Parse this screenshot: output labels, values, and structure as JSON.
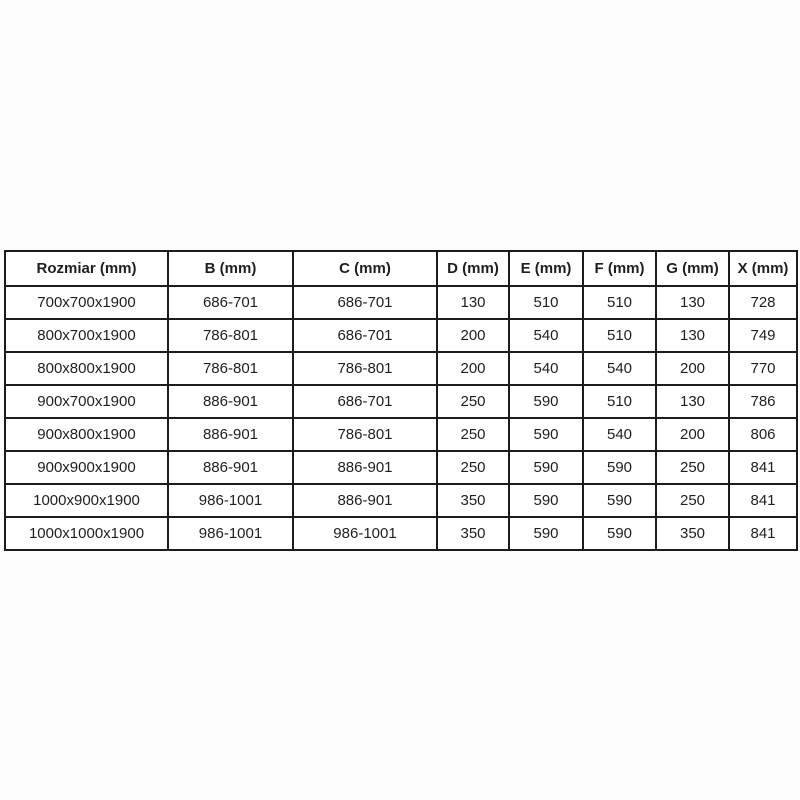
{
  "colors": {
    "page_background": "#fcfcfc",
    "cell_background": "#ffffff",
    "grid_border": "#1c1c1c",
    "text": "#1f1f1f"
  },
  "chart_data": {
    "type": "table",
    "title": "",
    "columns": [
      "Rozmiar (mm)",
      "B (mm)",
      "C (mm)",
      "D (mm)",
      "E (mm)",
      "F (mm)",
      "G (mm)",
      "X (mm)"
    ],
    "rows": [
      [
        "700x700x1900",
        "686-701",
        "686-701",
        "130",
        "510",
        "510",
        "130",
        "728"
      ],
      [
        "800x700x1900",
        "786-801",
        "686-701",
        "200",
        "540",
        "510",
        "130",
        "749"
      ],
      [
        "800x800x1900",
        "786-801",
        "786-801",
        "200",
        "540",
        "540",
        "200",
        "770"
      ],
      [
        "900x700x1900",
        "886-901",
        "686-701",
        "250",
        "590",
        "510",
        "130",
        "786"
      ],
      [
        "900x800x1900",
        "886-901",
        "786-801",
        "250",
        "590",
        "540",
        "200",
        "806"
      ],
      [
        "900x900x1900",
        "886-901",
        "886-901",
        "250",
        "590",
        "590",
        "250",
        "841"
      ],
      [
        "1000x900x1900",
        "986-1001",
        "886-901",
        "350",
        "590",
        "590",
        "250",
        "841"
      ],
      [
        "1000x1000x1900",
        "986-1001",
        "986-1001",
        "350",
        "590",
        "590",
        "350",
        "841"
      ]
    ]
  }
}
